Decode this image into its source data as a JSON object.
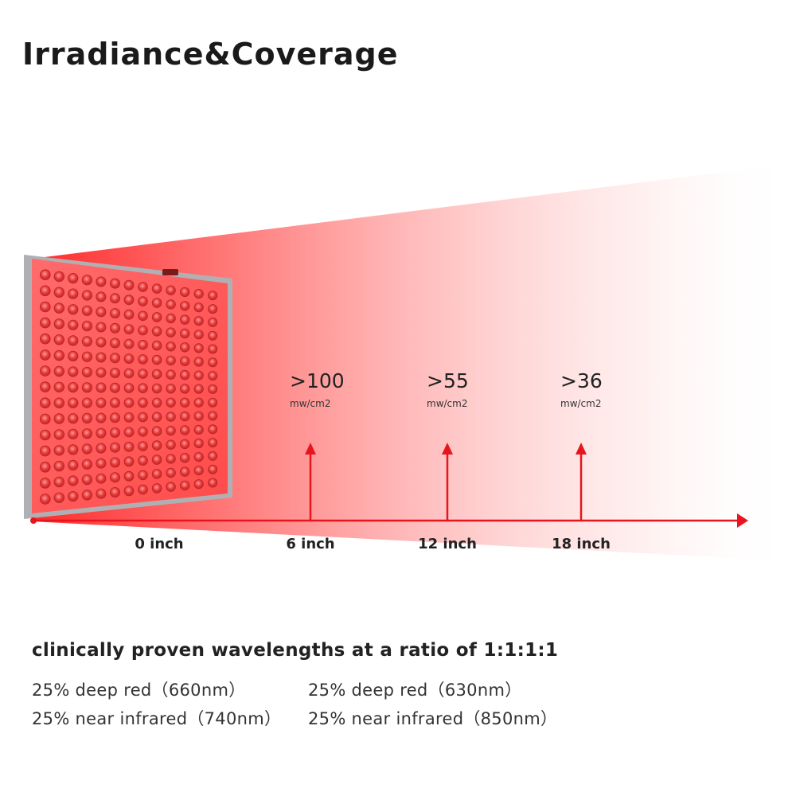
{
  "title": "Irradiance&Coverage",
  "distances": [
    {
      "label": "0 inch",
      "value": null,
      "unit": null
    },
    {
      "label": "6 inch",
      "value": ">100",
      "unit": "mw/cm2"
    },
    {
      "label": "12 inch",
      "value": ">55",
      "unit": "mw/cm2"
    },
    {
      "label": "18 inch",
      "value": ">36",
      "unit": "mw/cm2"
    }
  ],
  "colors": {
    "beam": "#ff2a2a",
    "axis": "#e8141e",
    "panel_frame": "#a9a9ad",
    "led": "#ef3a3a"
  },
  "panel": {
    "led_rows": 15,
    "led_cols": 13
  },
  "wavelengths": {
    "heading": "clinically proven wavelengths at a ratio of 1:1:1:1",
    "items": [
      "25% deep red（660nm）",
      "25% deep red（630nm）",
      "25% near infrared（740nm）",
      "25% near infrared（850nm）"
    ]
  }
}
